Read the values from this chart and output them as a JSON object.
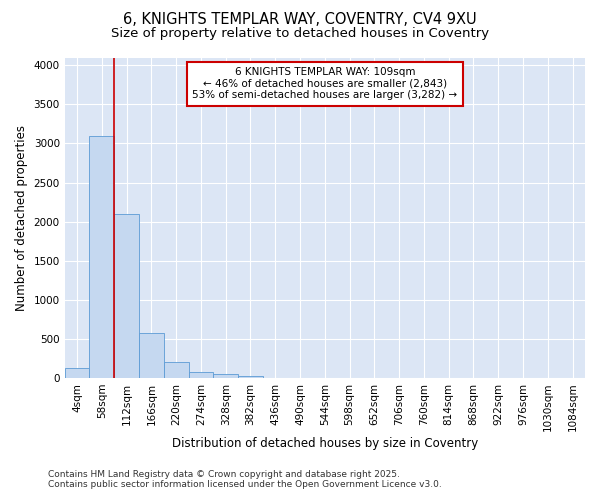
{
  "title_line1": "6, KNIGHTS TEMPLAR WAY, COVENTRY, CV4 9XU",
  "title_line2": "Size of property relative to detached houses in Coventry",
  "xlabel": "Distribution of detached houses by size in Coventry",
  "ylabel": "Number of detached properties",
  "categories": [
    "4sqm",
    "58sqm",
    "112sqm",
    "166sqm",
    "220sqm",
    "274sqm",
    "328sqm",
    "382sqm",
    "436sqm",
    "490sqm",
    "544sqm",
    "598sqm",
    "652sqm",
    "706sqm",
    "760sqm",
    "814sqm",
    "868sqm",
    "922sqm",
    "976sqm",
    "1030sqm",
    "1084sqm"
  ],
  "bar_values": [
    130,
    3100,
    2100,
    580,
    210,
    75,
    50,
    30,
    0,
    0,
    0,
    0,
    0,
    0,
    0,
    0,
    0,
    0,
    0,
    0,
    0
  ],
  "bar_color": "#c5d8f0",
  "bar_edge_color": "#5b9bd5",
  "vline_pos": 1.5,
  "vline_color": "#cc0000",
  "annotation_title": "6 KNIGHTS TEMPLAR WAY: 109sqm",
  "annotation_line1": "← 46% of detached houses are smaller (2,843)",
  "annotation_line2": "53% of semi-detached houses are larger (3,282) →",
  "annotation_box_facecolor": "#ffffff",
  "annotation_box_edgecolor": "#cc0000",
  "ylim": [
    0,
    4100
  ],
  "yticks": [
    0,
    500,
    1000,
    1500,
    2000,
    2500,
    3000,
    3500,
    4000
  ],
  "fig_facecolor": "#ffffff",
  "axes_facecolor": "#dce6f5",
  "grid_color": "#ffffff",
  "footer_line1": "Contains HM Land Registry data © Crown copyright and database right 2025.",
  "footer_line2": "Contains public sector information licensed under the Open Government Licence v3.0.",
  "title_fontsize": 10.5,
  "subtitle_fontsize": 9.5,
  "axis_label_fontsize": 8.5,
  "tick_fontsize": 7.5,
  "annot_fontsize": 7.5,
  "footer_fontsize": 6.5
}
